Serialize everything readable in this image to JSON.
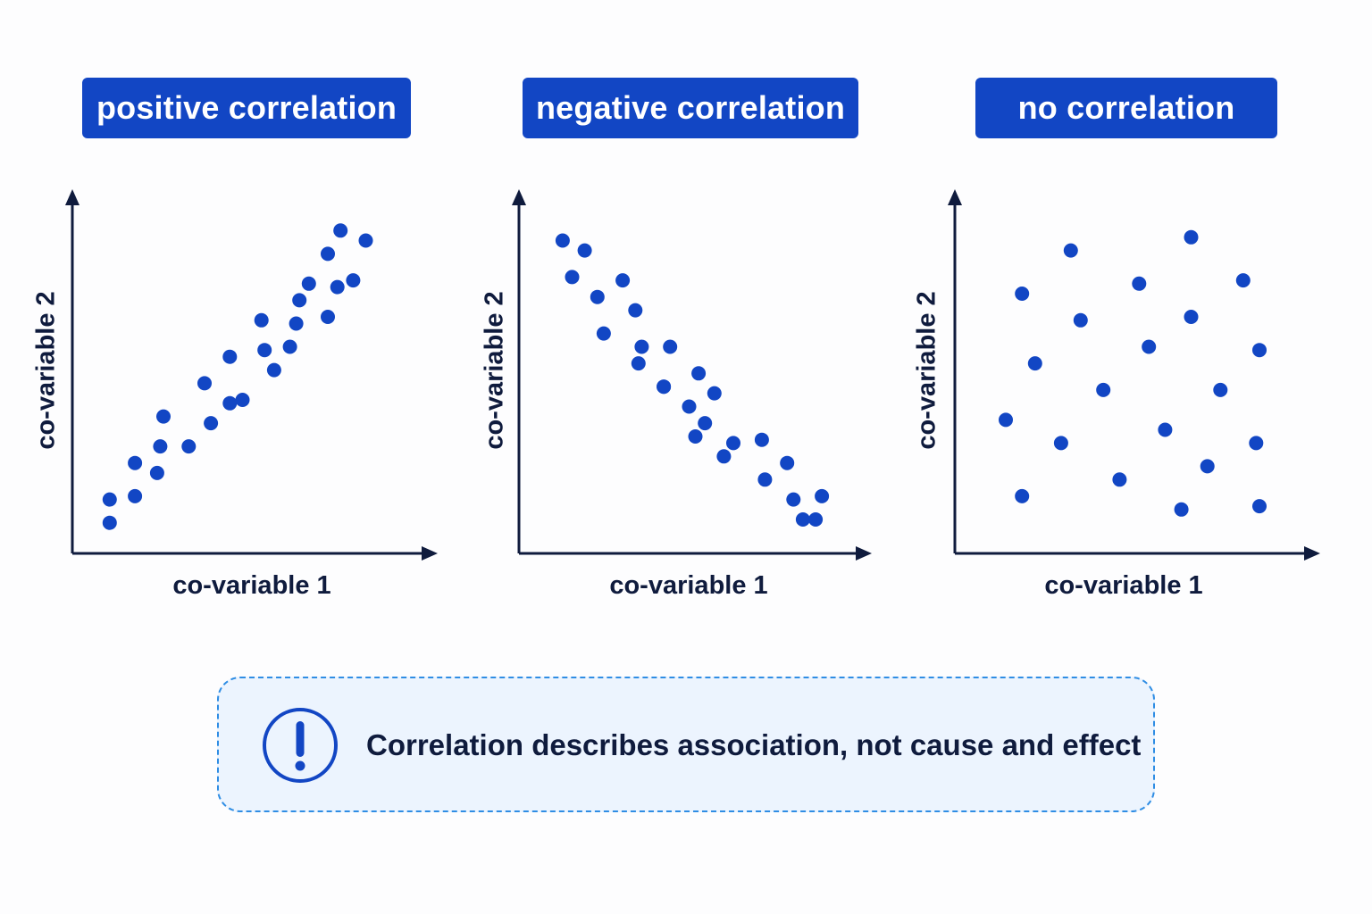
{
  "colors": {
    "accent": "#1246c4",
    "axis": "#0f1b3d",
    "note_border": "#2f8de4",
    "note_bg": "#ecf4fe"
  },
  "chart_data": [
    {
      "type": "scatter",
      "title": "positive correlation",
      "xlabel": "co-variable 1",
      "ylabel": "co-variable 2",
      "xlim": [
        0,
        100
      ],
      "ylim": [
        0,
        100
      ],
      "grid": false,
      "points": [
        [
          7,
          6
        ],
        [
          7,
          13
        ],
        [
          15,
          14
        ],
        [
          15,
          24
        ],
        [
          22,
          21
        ],
        [
          23,
          29
        ],
        [
          32,
          29
        ],
        [
          24,
          38
        ],
        [
          39,
          36
        ],
        [
          37,
          48
        ],
        [
          45,
          42
        ],
        [
          45,
          56
        ],
        [
          49,
          43
        ],
        [
          56,
          58
        ],
        [
          55,
          67
        ],
        [
          59,
          52
        ],
        [
          64,
          59
        ],
        [
          66,
          66
        ],
        [
          67,
          73
        ],
        [
          70,
          78
        ],
        [
          76,
          68
        ],
        [
          79,
          77
        ],
        [
          76,
          87
        ],
        [
          80,
          94
        ],
        [
          84,
          79
        ],
        [
          88,
          91
        ]
      ]
    },
    {
      "type": "scatter",
      "title": "negative correlation",
      "xlabel": "co-variable 1",
      "ylabel": "co-variable 2",
      "xlim": [
        0,
        100
      ],
      "ylim": [
        0,
        100
      ],
      "grid": false,
      "points": [
        [
          9,
          91
        ],
        [
          16,
          88
        ],
        [
          12,
          80
        ],
        [
          20,
          74
        ],
        [
          28,
          79
        ],
        [
          22,
          63
        ],
        [
          32,
          70
        ],
        [
          33,
          54
        ],
        [
          34,
          59
        ],
        [
          41,
          47
        ],
        [
          43,
          59
        ],
        [
          41,
          47
        ],
        [
          49,
          41
        ],
        [
          52,
          51
        ],
        [
          51,
          32
        ],
        [
          57,
          45
        ],
        [
          54,
          36
        ],
        [
          60,
          26
        ],
        [
          63,
          30
        ],
        [
          72,
          31
        ],
        [
          73,
          19
        ],
        [
          80,
          24
        ],
        [
          89,
          7
        ],
        [
          82,
          13
        ],
        [
          91,
          14
        ],
        [
          85,
          7
        ]
      ]
    },
    {
      "type": "scatter",
      "title": "no correlation",
      "xlabel": "co-variable 1",
      "ylabel": "co-variable 2",
      "xlim": [
        0,
        100
      ],
      "ylim": [
        0,
        100
      ],
      "grid": false,
      "points": [
        [
          16,
          75
        ],
        [
          31,
          88
        ],
        [
          68,
          92
        ],
        [
          52,
          78
        ],
        [
          84,
          79
        ],
        [
          34,
          67
        ],
        [
          55,
          59
        ],
        [
          68,
          68
        ],
        [
          89,
          58
        ],
        [
          20,
          54
        ],
        [
          41,
          46
        ],
        [
          77,
          46
        ],
        [
          11,
          37
        ],
        [
          28,
          30
        ],
        [
          60,
          34
        ],
        [
          88,
          30
        ],
        [
          73,
          23
        ],
        [
          46,
          19
        ],
        [
          16,
          14
        ],
        [
          65,
          10
        ],
        [
          89,
          11
        ]
      ]
    }
  ],
  "note": {
    "icon": "exclamation-circle-icon",
    "text": "Correlation describes association, not cause and effect"
  }
}
